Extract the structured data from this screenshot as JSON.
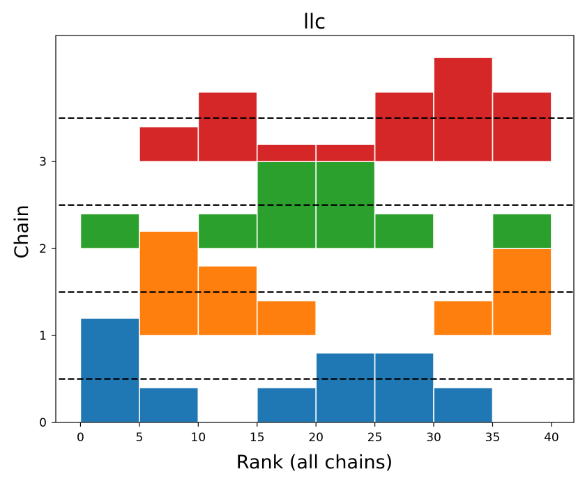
{
  "chart_data": {
    "type": "bar",
    "title": "llc",
    "xlabel": "Rank (all chains)",
    "ylabel": "Chain",
    "xlim": [
      -2.1,
      41.9
    ],
    "ylim": [
      0,
      4.45
    ],
    "xticks": [
      0,
      5,
      10,
      15,
      20,
      25,
      30,
      35,
      40
    ],
    "yticks": [
      0,
      1,
      2,
      3
    ],
    "bin_edges": [
      0,
      5,
      10,
      15,
      20,
      25,
      30,
      35,
      40
    ],
    "reference_lines": [
      0.5,
      1.5,
      2.5,
      3.5
    ],
    "grid": false,
    "legend": "none",
    "series": [
      {
        "chain": 0,
        "baseline": 0,
        "color": "#1f77b4",
        "heights": [
          1.2,
          0.4,
          0.0,
          0.4,
          0.8,
          0.8,
          0.4,
          0.0
        ]
      },
      {
        "chain": 1,
        "baseline": 1,
        "color": "#ff7f0e",
        "heights": [
          0.0,
          1.2,
          0.8,
          0.4,
          0.0,
          0.0,
          0.4,
          1.0
        ]
      },
      {
        "chain": 2,
        "baseline": 2,
        "color": "#2ca02c",
        "heights": [
          0.4,
          0.0,
          0.4,
          1.2,
          1.2,
          0.4,
          0.0,
          0.4
        ]
      },
      {
        "chain": 3,
        "baseline": 3,
        "color": "#d62728",
        "heights": [
          0.0,
          0.4,
          0.8,
          0.2,
          0.2,
          0.8,
          1.2,
          0.8
        ]
      }
    ]
  }
}
